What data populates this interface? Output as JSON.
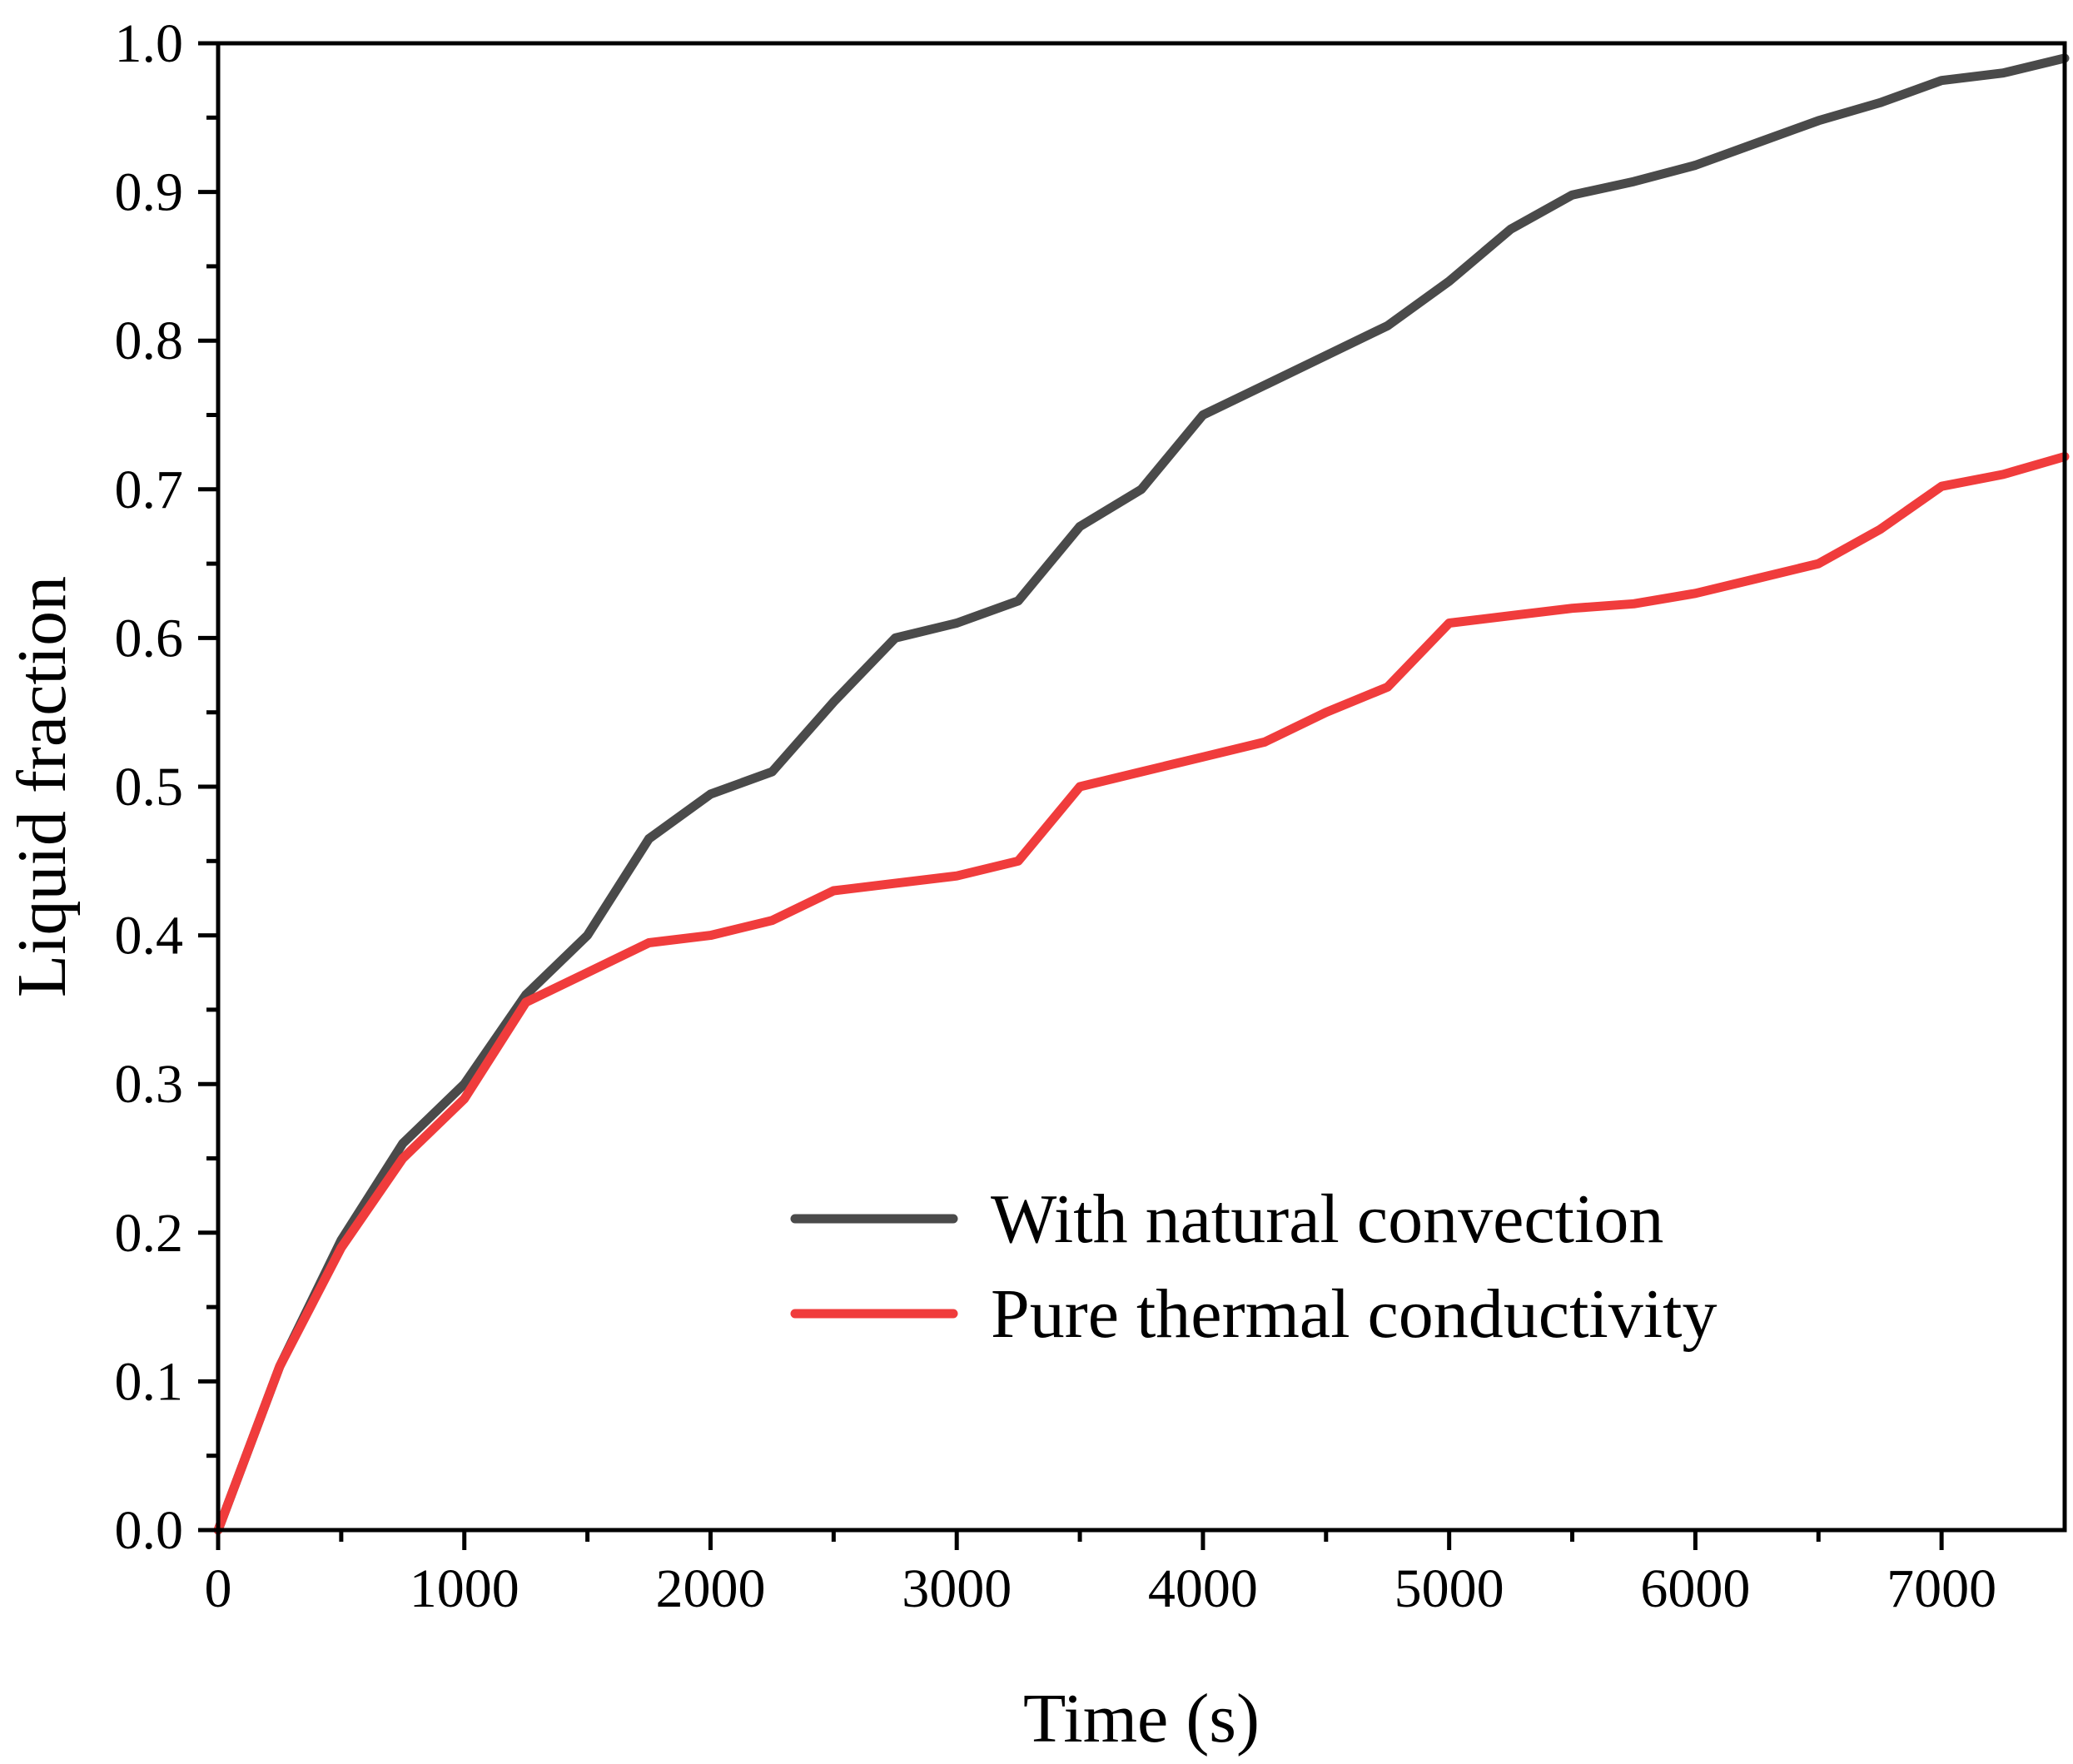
{
  "chart_data": {
    "type": "line",
    "xlabel": "Time (s)",
    "ylabel": "Liquid fraction",
    "xlim": [
      0,
      7500
    ],
    "ylim": [
      0,
      1.0
    ],
    "x_ticks": [
      0,
      1000,
      2000,
      3000,
      4000,
      5000,
      6000,
      7000
    ],
    "x_tick_labels": [
      "0",
      "1000",
      "2000",
      "3000",
      "4000",
      "5000",
      "6000",
      "7000"
    ],
    "x_minor_ticks": [
      500,
      1500,
      2500,
      3500,
      4500,
      5500,
      6500
    ],
    "y_ticks": [
      0.0,
      0.1,
      0.2,
      0.3,
      0.4,
      0.5,
      0.6,
      0.7,
      0.8,
      0.9,
      1.0
    ],
    "y_tick_labels": [
      "0.0",
      "0.1",
      "0.2",
      "0.3",
      "0.4",
      "0.5",
      "0.6",
      "0.7",
      "0.8",
      "0.9",
      "1.0"
    ],
    "y_minor_ticks": [
      0.05,
      0.15,
      0.25,
      0.35,
      0.45,
      0.55,
      0.65,
      0.75,
      0.85,
      0.95
    ],
    "grid": false,
    "legend_position": "lower-right",
    "x": [
      0,
      250,
      500,
      750,
      1000,
      1250,
      1500,
      1750,
      2000,
      2250,
      2500,
      2750,
      3000,
      3250,
      3500,
      3750,
      4000,
      4250,
      4500,
      4750,
      5000,
      5250,
      5500,
      5750,
      6000,
      6250,
      6500,
      6750,
      7000,
      7250,
      7500
    ],
    "series": [
      {
        "name": "With natural convection",
        "color": "#4a4a4a",
        "values": [
          0.0,
          0.11,
          0.195,
          0.26,
          0.3,
          0.36,
          0.4,
          0.465,
          0.495,
          0.51,
          0.557,
          0.6,
          0.61,
          0.625,
          0.675,
          0.7,
          0.75,
          0.77,
          0.79,
          0.81,
          0.84,
          0.875,
          0.898,
          0.907,
          0.918,
          0.933,
          0.948,
          0.96,
          0.975,
          0.98,
          0.99
        ]
      },
      {
        "name": "Pure thermal conductivity",
        "color": "#f03c3c",
        "values": [
          0.0,
          0.11,
          0.19,
          0.25,
          0.29,
          0.355,
          0.375,
          0.395,
          0.4,
          0.41,
          0.43,
          0.435,
          0.44,
          0.45,
          0.5,
          0.51,
          0.52,
          0.53,
          0.55,
          0.567,
          0.61,
          0.615,
          0.62,
          0.623,
          0.63,
          0.64,
          0.65,
          0.673,
          0.702,
          0.71,
          0.722
        ]
      }
    ]
  }
}
